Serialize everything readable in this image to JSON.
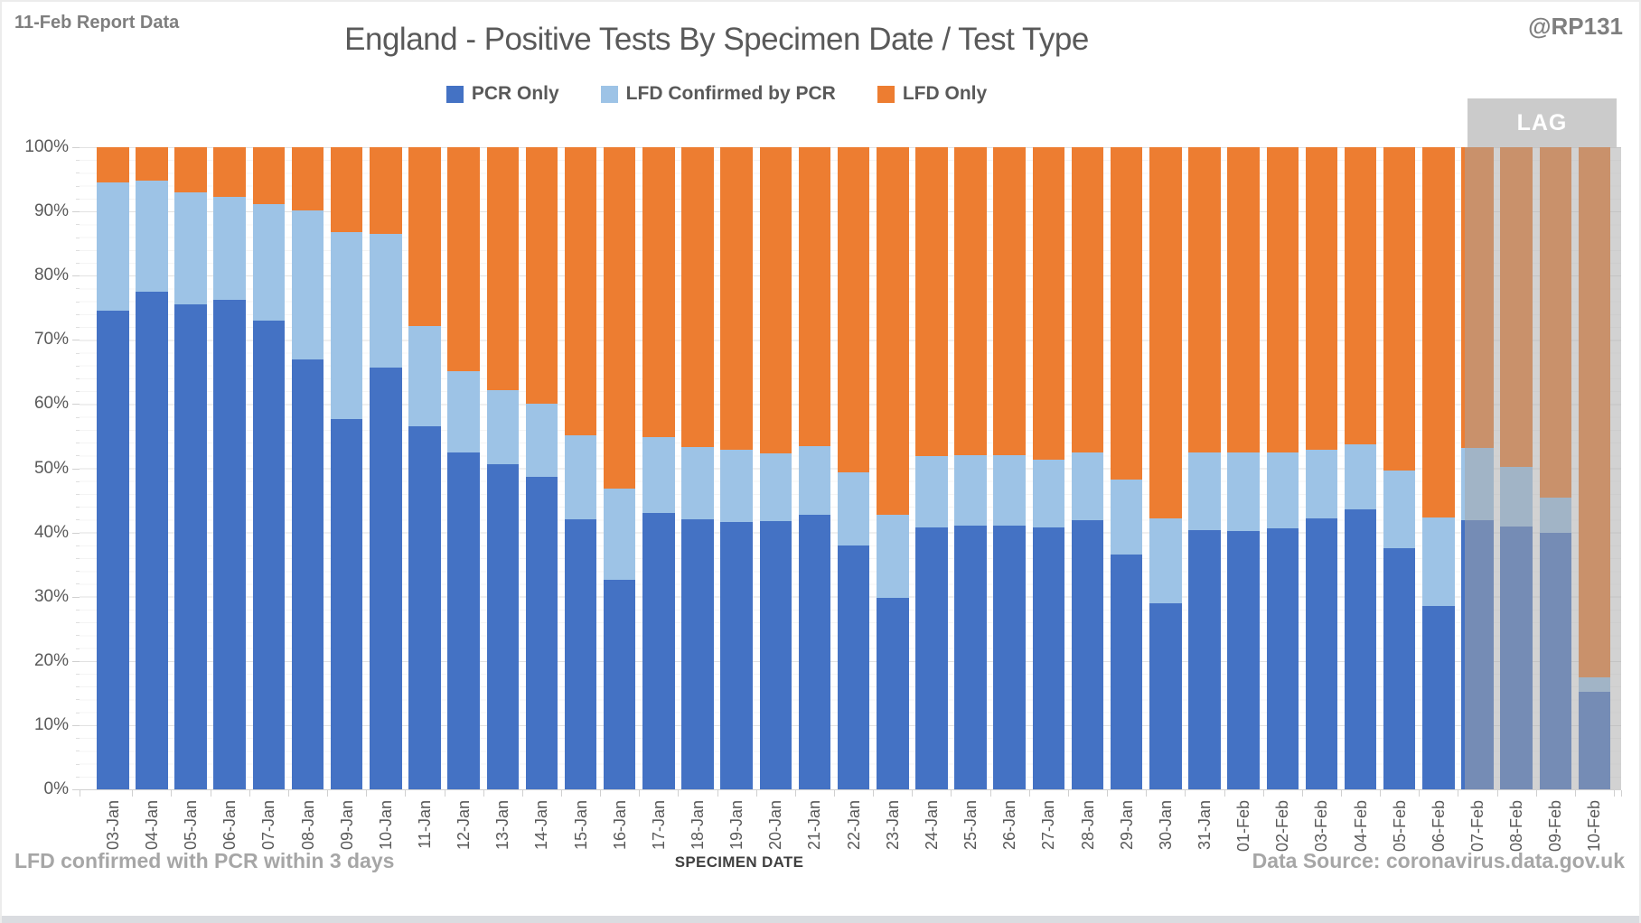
{
  "header": {
    "report_label": "11-Feb Report Data",
    "title": "England - Positive Tests By Specimen Date / Test Type",
    "handle": "@RP131"
  },
  "legend": [
    {
      "label": "PCR Only",
      "color": "#4472C4"
    },
    {
      "label": "LFD Confirmed by PCR",
      "color": "#9DC3E6"
    },
    {
      "label": "LFD Only",
      "color": "#ED7D31"
    }
  ],
  "lag": {
    "label": "LAG",
    "overlay_color": "rgba(166,166,166,0.5)",
    "box_color": "#cbcbcb",
    "categories_covered": [
      "07-Feb",
      "08-Feb",
      "09-Feb",
      "10-Feb"
    ]
  },
  "footer": {
    "note": "LFD confirmed with PCR within 3 days",
    "x_axis_title": "SPECIMEN DATE",
    "source": "Data Source: coronavirus.data.gov.uk"
  },
  "chart_data": {
    "type": "bar",
    "subtype": "stacked-percent",
    "title": "England - Positive Tests By Specimen Date / Test Type",
    "xlabel": "SPECIMEN DATE",
    "ylabel": "",
    "ylim": [
      0,
      100
    ],
    "y_tick_labels": [
      "0%",
      "10%",
      "20%",
      "30%",
      "40%",
      "50%",
      "60%",
      "70%",
      "80%",
      "90%",
      "100%"
    ],
    "grid": true,
    "legend_position": "top",
    "categories": [
      "03-Jan",
      "04-Jan",
      "05-Jan",
      "06-Jan",
      "07-Jan",
      "08-Jan",
      "09-Jan",
      "10-Jan",
      "11-Jan",
      "12-Jan",
      "13-Jan",
      "14-Jan",
      "15-Jan",
      "16-Jan",
      "17-Jan",
      "18-Jan",
      "19-Jan",
      "20-Jan",
      "21-Jan",
      "22-Jan",
      "23-Jan",
      "24-Jan",
      "25-Jan",
      "26-Jan",
      "27-Jan",
      "28-Jan",
      "29-Jan",
      "30-Jan",
      "31-Jan",
      "01-Feb",
      "02-Feb",
      "03-Feb",
      "04-Feb",
      "05-Feb",
      "06-Feb",
      "07-Feb",
      "08-Feb",
      "09-Feb",
      "10-Feb"
    ],
    "series": [
      {
        "name": "PCR Only",
        "color": "#4472C4",
        "values": [
          74.5,
          77.5,
          75.5,
          76.3,
          73.0,
          67.0,
          57.7,
          65.7,
          56.5,
          52.4,
          50.7,
          48.7,
          42.1,
          32.7,
          43.0,
          42.1,
          41.7,
          41.8,
          42.8,
          38.0,
          29.8,
          40.8,
          41.0,
          41.0,
          40.8,
          41.9,
          36.5,
          29.0,
          40.3,
          40.2,
          40.7,
          42.2,
          43.6,
          37.6,
          28.6,
          41.9,
          40.9,
          39.9,
          15.2
        ]
      },
      {
        "name": "LFD Confirmed by PCR",
        "color": "#9DC3E6",
        "values": [
          20.0,
          17.3,
          17.5,
          15.9,
          18.2,
          23.1,
          29.1,
          20.8,
          15.7,
          12.7,
          11.5,
          11.4,
          13.0,
          14.1,
          11.8,
          11.2,
          11.2,
          10.5,
          10.6,
          11.4,
          12.9,
          11.1,
          11.0,
          11.0,
          10.6,
          10.5,
          11.8,
          13.2,
          12.1,
          12.2,
          11.7,
          10.7,
          10.1,
          12.0,
          13.7,
          11.3,
          9.3,
          5.5,
          2.2
        ]
      },
      {
        "name": "LFD Only",
        "color": "#ED7D31",
        "values": [
          5.5,
          5.2,
          7.0,
          7.8,
          8.8,
          9.9,
          13.2,
          13.5,
          27.8,
          34.9,
          37.8,
          39.9,
          44.9,
          53.2,
          45.2,
          46.7,
          47.1,
          47.7,
          46.6,
          50.6,
          57.3,
          48.1,
          48.0,
          48.0,
          48.6,
          47.6,
          51.7,
          57.8,
          47.6,
          47.6,
          47.6,
          47.1,
          46.3,
          50.4,
          57.7,
          46.8,
          49.8,
          54.6,
          82.6
        ]
      }
    ],
    "lag_categories": [
      "07-Feb",
      "08-Feb",
      "09-Feb",
      "10-Feb"
    ]
  }
}
